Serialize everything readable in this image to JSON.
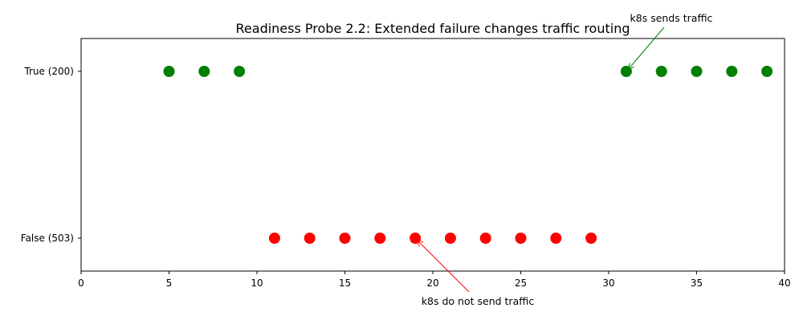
{
  "chart_data": {
    "type": "scatter",
    "title": "Readiness Probe 2.2: Extended failure changes traffic routing",
    "xlabel": "",
    "ylabel": "",
    "xlim": [
      0,
      40
    ],
    "x_ticks": [
      0,
      5,
      10,
      15,
      20,
      25,
      30,
      35,
      40
    ],
    "y_categories": [
      "False (503)",
      "True (200)"
    ],
    "grid": false,
    "series": [
      {
        "color": "#008000",
        "category": "True (200)",
        "x": [
          5,
          7,
          9,
          31,
          33,
          35,
          37,
          39
        ]
      },
      {
        "color": "#ff0000",
        "category": "False (503)",
        "x": [
          11,
          13,
          15,
          17,
          19,
          21,
          23,
          25,
          27,
          29
        ]
      }
    ],
    "annotations": [
      {
        "text": "k8s sends traffic",
        "color": "#008000",
        "point": {
          "x": 31,
          "y": "True (200)"
        }
      },
      {
        "text": "k8s do not send traffic",
        "color": "#ff0000",
        "point": {
          "x": 19,
          "y": "False (503)"
        }
      }
    ]
  }
}
